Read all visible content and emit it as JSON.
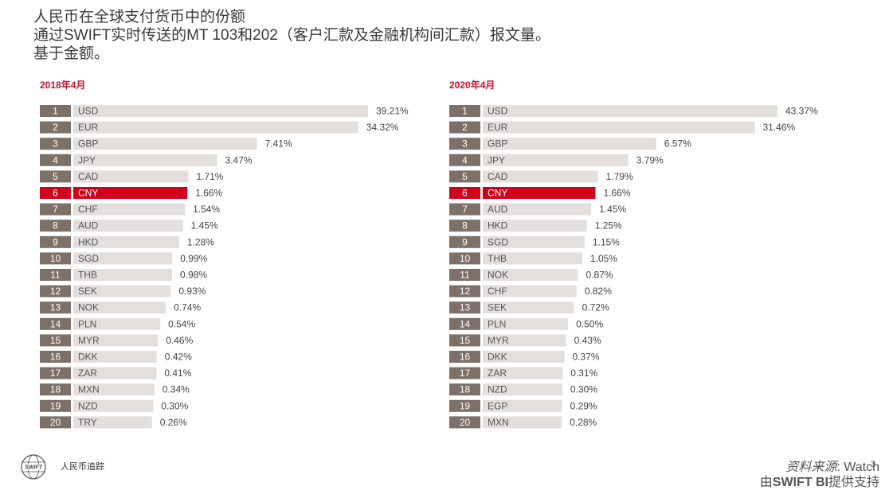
{
  "header": {
    "title_line1": "人民币在全球支付货币中的份额",
    "title_line2": "通过SWIFT实时传送的MT 103和202（客户汇款及金融机构间汇款）报文量。",
    "title_line3": "基于金额。"
  },
  "colors": {
    "rank_box": "#7d7068",
    "bar": "#e3dfdd",
    "highlight": "#d0021b",
    "heading": "#c8102e"
  },
  "chart_data": [
    {
      "type": "bar",
      "orientation": "horizontal",
      "title": "2018年4月",
      "highlight": "CNY",
      "ranks": [
        "1",
        "2",
        "3",
        "4",
        "5",
        "6",
        "7",
        "8",
        "9",
        "10",
        "11",
        "12",
        "13",
        "14",
        "15",
        "16",
        "17",
        "18",
        "19",
        "20"
      ],
      "categories": [
        "USD",
        "EUR",
        "GBP",
        "JPY",
        "CAD",
        "CNY",
        "CHF",
        "AUD",
        "HKD",
        "SGD",
        "THB",
        "SEK",
        "NOK",
        "PLN",
        "MYR",
        "DKK",
        "ZAR",
        "MXN",
        "NZD",
        "TRY"
      ],
      "values": [
        39.21,
        34.32,
        7.41,
        3.47,
        1.71,
        1.66,
        1.54,
        1.45,
        1.28,
        0.99,
        0.98,
        0.93,
        0.74,
        0.54,
        0.46,
        0.42,
        0.41,
        0.34,
        0.3,
        0.26
      ],
      "labels": [
        "39.21%",
        "34.32%",
        "7.41%",
        "3.47%",
        "1.71%",
        "1.66%",
        "1.54%",
        "1.45%",
        "1.28%",
        "0.99%",
        "0.98%",
        "0.93%",
        "0.74%",
        "0.54%",
        "0.46%",
        "0.42%",
        "0.41%",
        "0.34%",
        "0.30%",
        "0.26%"
      ]
    },
    {
      "type": "bar",
      "orientation": "horizontal",
      "title": "2020年4月",
      "highlight": "CNY",
      "ranks": [
        "1",
        "2",
        "3",
        "4",
        "5",
        "6",
        "7",
        "8",
        "9",
        "10",
        "11",
        "12",
        "13",
        "14",
        "15",
        "16",
        "17",
        "18",
        "19",
        "20"
      ],
      "categories": [
        "USD",
        "EUR",
        "GBP",
        "JPY",
        "CAD",
        "CNY",
        "AUD",
        "HKD",
        "SGD",
        "THB",
        "NOK",
        "CHF",
        "SEK",
        "PLN",
        "MYR",
        "DKK",
        "ZAR",
        "NZD",
        "EGP",
        "MXN"
      ],
      "values": [
        43.37,
        31.46,
        6.57,
        3.79,
        1.79,
        1.66,
        1.45,
        1.25,
        1.15,
        1.05,
        0.87,
        0.82,
        0.72,
        0.5,
        0.43,
        0.37,
        0.31,
        0.3,
        0.29,
        0.28
      ],
      "labels": [
        "43.37%",
        "31.46%",
        "6.57%",
        "3.79%",
        "1.79%",
        "1.66%",
        "1.45%",
        "1.25%",
        "1.15%",
        "1.05%",
        "0.87%",
        "0.82%",
        "0.72%",
        "0.50%",
        "0.43%",
        "0.37%",
        "0.31%",
        "0.30%",
        "0.29%",
        "0.28%"
      ]
    }
  ],
  "footer": {
    "logo_text": "SWIFT",
    "tracker": "人民币追踪",
    "source_label": "资料来源",
    "source_rest": ": Watch",
    "provider_prefix": "由",
    "provider_bold": "SWIFT BI",
    "provider_suffix": "提供支持",
    "page_number": "3"
  }
}
